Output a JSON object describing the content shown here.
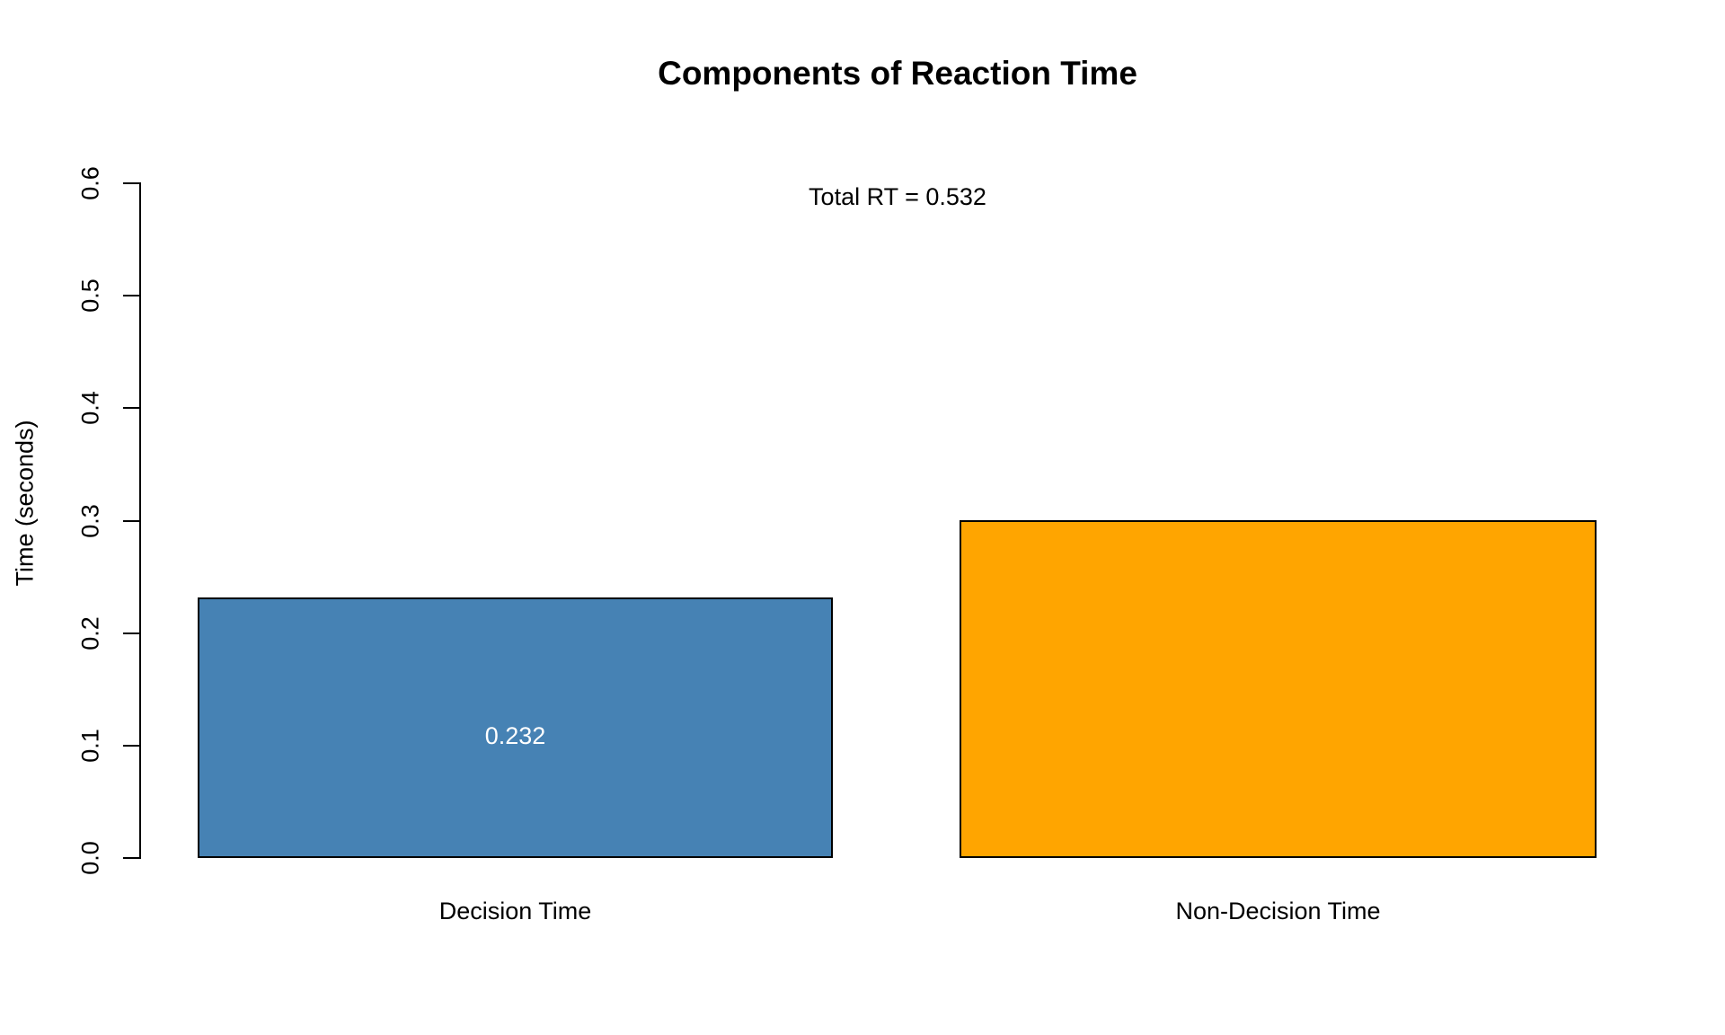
{
  "chart_data": {
    "type": "bar",
    "title": "Components of Reaction Time",
    "annotation": "Total RT = 0.532",
    "xlabel": "",
    "ylabel": "Time (seconds)",
    "categories": [
      "Decision Time",
      "Non-Decision Time"
    ],
    "values": [
      0.232,
      0.3
    ],
    "bar_value_labels": [
      "0.232",
      ""
    ],
    "colors": [
      "#4682B4",
      "#FFA500"
    ],
    "bar_border_color": "#000000",
    "value_label_color": "#FFFFFF",
    "axis_color": "#000000",
    "background_color": "#FFFFFF",
    "ylim": [
      0,
      0.6
    ],
    "yticks": [
      "0.0",
      "0.1",
      "0.2",
      "0.3",
      "0.4",
      "0.5",
      "0.6"
    ],
    "grid": false,
    "legend": "none",
    "total_rt": 0.532
  }
}
